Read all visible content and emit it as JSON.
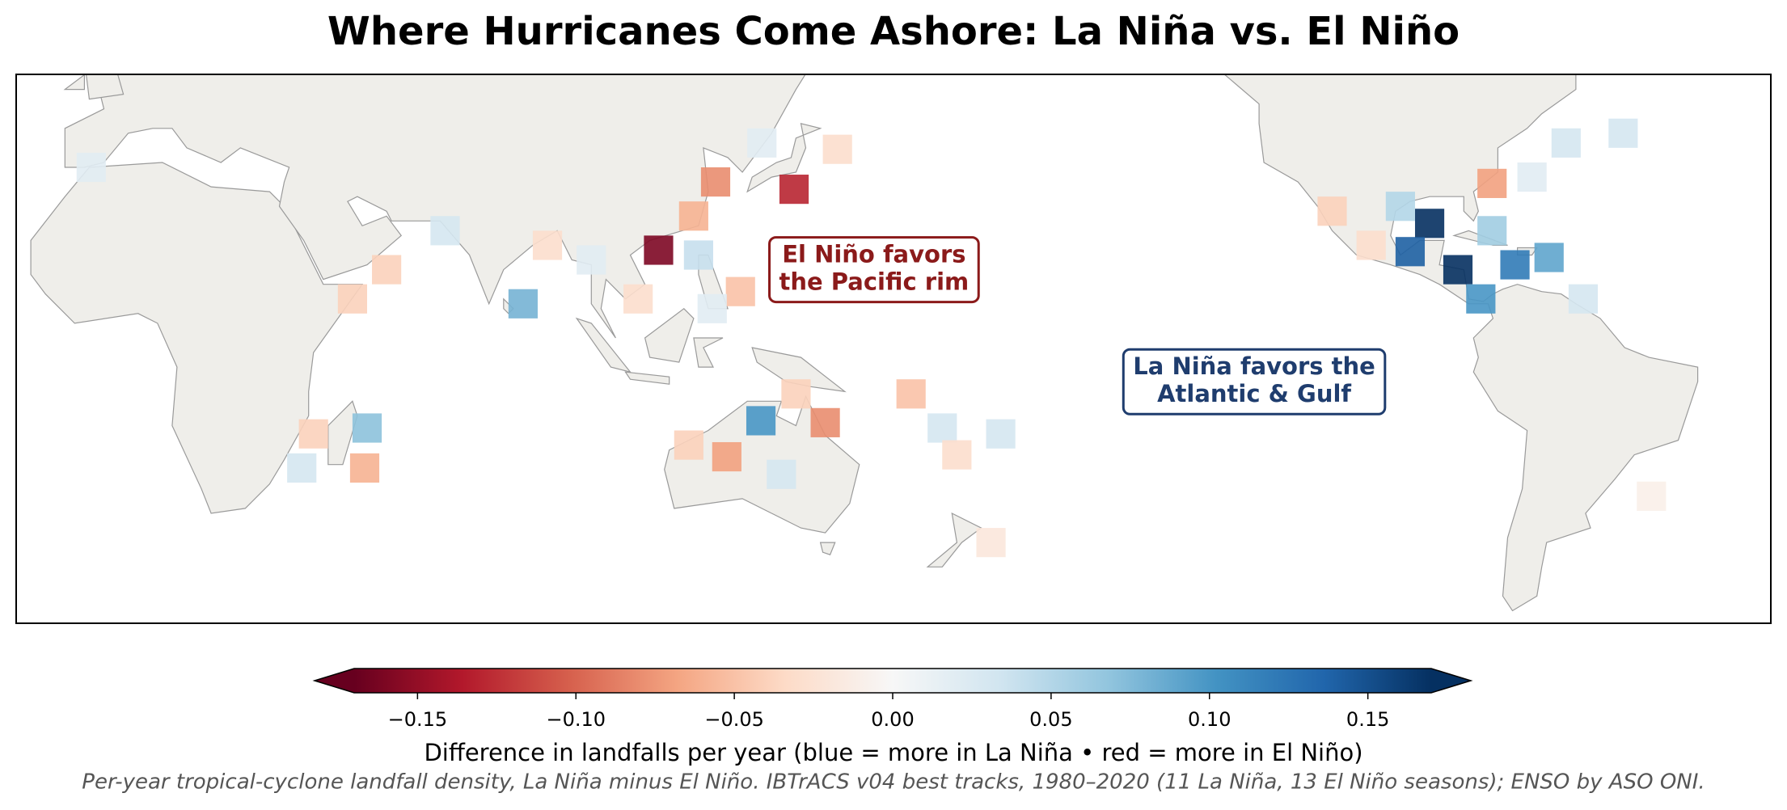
{
  "chart_data": {
    "type": "heatmap-map",
    "title": "Where Hurricanes Come Ashore: La Niña vs. El Niño",
    "annotations": [
      {
        "lines": [
          "El Niño favors",
          "the Pacific rim"
        ],
        "color": "#8b1a1a",
        "lon": 156,
        "lat": 15
      },
      {
        "lines": [
          "La Niña favors the",
          "Atlantic & Gulf"
        ],
        "color": "#1f3d6e",
        "lon": 234,
        "lat": -8
      }
    ],
    "cells": {
      "lon": [
        111.8,
        139.6,
        123.5,
        119,
        89,
        120,
        98,
        128.6,
        107.6,
        122.8,
        84,
        68,
        56,
        49,
        52,
        41,
        51.5,
        38.6,
        -4.6,
        132.8,
        146,
        140,
        125.8,
        118,
        137,
        163.6,
        170,
        173,
        182,
        180,
        133,
        148.5,
        270,
        275.8,
        287.5,
        294.5,
        266,
        280.5,
        301.5,
        282.8,
        264,
        282.8,
        250,
        258,
        298,
        309.7,
        291,
        315.5
      ],
      "lat": [
        19,
        31.5,
        33,
        26,
        20,
        18,
        17,
        10.5,
        9,
        7,
        8,
        23,
        15,
        9,
        -17.5,
        -18.7,
        -25.7,
        -25.7,
        36,
        -16,
        -16.4,
        -10.5,
        -23.4,
        -21,
        -27,
        -10.5,
        -17.5,
        -23,
        -18.7,
        -41,
        41,
        39.7,
        24.5,
        15,
        16,
        17.5,
        18.7,
        9,
        9,
        23,
        28,
        32.7,
        27,
        20,
        41,
        43,
        34,
        -31.5
      ],
      "values": [
        -0.16,
        -0.13,
        -0.08,
        -0.06,
        -0.03,
        0.04,
        0.02,
        -0.05,
        -0.03,
        0.02,
        0.08,
        0.03,
        -0.04,
        -0.04,
        0.07,
        -0.04,
        -0.06,
        0.03,
        0.02,
        0.1,
        -0.08,
        -0.04,
        -0.07,
        -0.04,
        0.03,
        -0.05,
        0.03,
        -0.03,
        0.03,
        -0.02,
        0.02,
        -0.03,
        0.17,
        0.17,
        0.12,
        0.09,
        0.14,
        0.1,
        0.03,
        0.06,
        0.05,
        -0.07,
        -0.04,
        -0.03,
        0.03,
        0.03,
        0.02,
        -0.01
      ]
    },
    "colorbar": {
      "lim": [
        -0.17,
        0.17
      ],
      "ticks": [
        {
          "value": -0.15,
          "label": "−0.15"
        },
        {
          "value": -0.1,
          "label": "−0.10"
        },
        {
          "value": -0.05,
          "label": "−0.05"
        },
        {
          "value": 0,
          "label": "0.00"
        },
        0.05,
        {
          "value": 0.1,
          "label": "0.10"
        },
        0.15
      ],
      "colors": [
        "#67001f",
        "#b2182b",
        "#d6604d",
        "#f4a582",
        "#fddbc7",
        "#f7f7f7",
        "#d1e5f0",
        "#92c5de",
        "#4393c3",
        "#2166ac",
        "#053061"
      ],
      "label": "Difference in landfalls per year  (blue = more in La Niña   •   red = more in El Niño)"
    },
    "footnote": "Per-year tropical-cyclone landfall density, La Niña minus El Niño. IBTrACS v04 best tracks, 1980–2020 (11 La Niña, 13 El Niño seasons); ENSO by ASO ONI."
  }
}
